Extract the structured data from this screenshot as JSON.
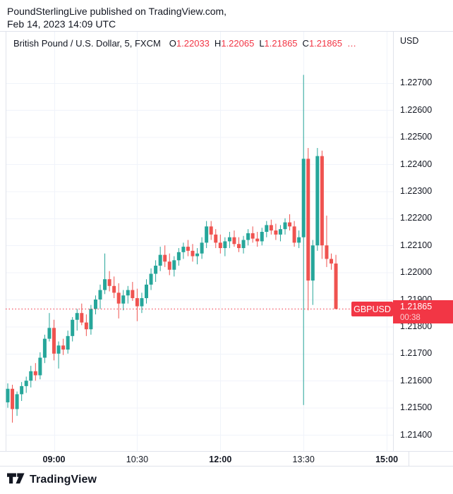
{
  "header": {
    "line1": "PoundSterlingLive published on TradingView.com,",
    "line2": "Feb 14, 2023 14:09 UTC"
  },
  "legend": {
    "title": "British Pound / U.S. Dollar, 5, FXCM",
    "ohlc": [
      {
        "label": "O",
        "value": "1.22033"
      },
      {
        "label": "H",
        "value": "1.22065"
      },
      {
        "label": "L",
        "value": "1.21865"
      },
      {
        "label": "C",
        "value": "1.21865"
      }
    ],
    "more_indicator": "…"
  },
  "price_axis": {
    "currency": "USD",
    "ticks": [
      "1.22700",
      "1.22600",
      "1.22500",
      "1.22400",
      "1.22300",
      "1.22200",
      "1.22100",
      "1.22000",
      "1.21900",
      "1.21800",
      "1.21700",
      "1.21600",
      "1.21500",
      "1.21400"
    ]
  },
  "last_price": {
    "value": "1.21865",
    "countdown": "00:38"
  },
  "price_line_label": "GBPUSD",
  "time_axis": {
    "labels": [
      {
        "text": "09:00",
        "emphasis": true
      },
      {
        "text": "10:30",
        "emphasis": false
      },
      {
        "text": "12:00",
        "emphasis": true
      },
      {
        "text": "13:30",
        "emphasis": false
      },
      {
        "text": "15:00",
        "emphasis": true
      }
    ]
  },
  "footer": {
    "brand": "TradingView"
  },
  "colors": {
    "up": "#26a69a",
    "down": "#ef5350",
    "accent_red": "#f23645",
    "grid": "#f0f3fa",
    "border": "#e0e3eb",
    "text": "#131722",
    "badge_text": "#ffffff"
  },
  "chart_data": {
    "type": "candlestick",
    "symbol": "GBPUSD",
    "description": "British Pound / U.S. Dollar",
    "interval_minutes": 5,
    "exchange": "FXCM",
    "quote_currency": "USD",
    "price_line": 1.21865,
    "y_ticks": [
      1.227,
      1.226,
      1.225,
      1.224,
      1.223,
      1.222,
      1.221,
      1.22,
      1.219,
      1.218,
      1.217,
      1.216,
      1.215,
      1.214
    ],
    "y_range_visible": [
      1.2133,
      1.2286
    ],
    "x_labels": [
      "09:00",
      "10:30",
      "12:00",
      "13:30",
      "15:00"
    ],
    "grid": true,
    "legend_position": "top-left",
    "candles": [
      {
        "t": "08:10",
        "o": 1.2152,
        "h": 1.2159,
        "l": 1.215,
        "c": 1.2157
      },
      {
        "t": "08:15",
        "o": 1.2157,
        "h": 1.21585,
        "l": 1.21445,
        "c": 1.21495
      },
      {
        "t": "08:20",
        "o": 1.21495,
        "h": 1.2156,
        "l": 1.2147,
        "c": 1.2155
      },
      {
        "t": "08:25",
        "o": 1.2155,
        "h": 1.21595,
        "l": 1.21525,
        "c": 1.2158
      },
      {
        "t": "08:30",
        "o": 1.2158,
        "h": 1.21615,
        "l": 1.21555,
        "c": 1.216
      },
      {
        "t": "08:35",
        "o": 1.216,
        "h": 1.21655,
        "l": 1.21575,
        "c": 1.21635
      },
      {
        "t": "08:40",
        "o": 1.21635,
        "h": 1.21665,
        "l": 1.216,
        "c": 1.2162
      },
      {
        "t": "08:45",
        "o": 1.2162,
        "h": 1.21705,
        "l": 1.21605,
        "c": 1.21685
      },
      {
        "t": "08:50",
        "o": 1.21685,
        "h": 1.2177,
        "l": 1.21665,
        "c": 1.21755
      },
      {
        "t": "08:55",
        "o": 1.21755,
        "h": 1.2185,
        "l": 1.21745,
        "c": 1.21795
      },
      {
        "t": "09:00",
        "o": 1.21795,
        "h": 1.21825,
        "l": 1.21675,
        "c": 1.217
      },
      {
        "t": "09:05",
        "o": 1.217,
        "h": 1.21745,
        "l": 1.21645,
        "c": 1.2173
      },
      {
        "t": "09:10",
        "o": 1.2173,
        "h": 1.21755,
        "l": 1.21695,
        "c": 1.21715
      },
      {
        "t": "09:15",
        "o": 1.21715,
        "h": 1.21785,
        "l": 1.217,
        "c": 1.21765
      },
      {
        "t": "09:20",
        "o": 1.21765,
        "h": 1.21835,
        "l": 1.21745,
        "c": 1.21825
      },
      {
        "t": "09:25",
        "o": 1.21825,
        "h": 1.21865,
        "l": 1.21785,
        "c": 1.2185
      },
      {
        "t": "09:30",
        "o": 1.2185,
        "h": 1.21885,
        "l": 1.21805,
        "c": 1.21815
      },
      {
        "t": "09:35",
        "o": 1.21815,
        "h": 1.21845,
        "l": 1.21765,
        "c": 1.2179
      },
      {
        "t": "09:40",
        "o": 1.2179,
        "h": 1.2188,
        "l": 1.2177,
        "c": 1.21865
      },
      {
        "t": "09:45",
        "o": 1.21865,
        "h": 1.21915,
        "l": 1.21845,
        "c": 1.219
      },
      {
        "t": "09:50",
        "o": 1.219,
        "h": 1.21955,
        "l": 1.21865,
        "c": 1.21935
      },
      {
        "t": "09:55",
        "o": 1.21935,
        "h": 1.2207,
        "l": 1.2192,
        "c": 1.21975
      },
      {
        "t": "10:00",
        "o": 1.21975,
        "h": 1.22005,
        "l": 1.2193,
        "c": 1.2195
      },
      {
        "t": "10:05",
        "o": 1.2195,
        "h": 1.21985,
        "l": 1.21905,
        "c": 1.21925
      },
      {
        "t": "10:10",
        "o": 1.21925,
        "h": 1.2196,
        "l": 1.2183,
        "c": 1.21885
      },
      {
        "t": "10:15",
        "o": 1.21885,
        "h": 1.21935,
        "l": 1.2186,
        "c": 1.21915
      },
      {
        "t": "10:20",
        "o": 1.21915,
        "h": 1.2195,
        "l": 1.21885,
        "c": 1.21935
      },
      {
        "t": "10:25",
        "o": 1.21935,
        "h": 1.21965,
        "l": 1.21895,
        "c": 1.21905
      },
      {
        "t": "10:30",
        "o": 1.21905,
        "h": 1.2194,
        "l": 1.2182,
        "c": 1.21875
      },
      {
        "t": "10:35",
        "o": 1.21875,
        "h": 1.21925,
        "l": 1.2185,
        "c": 1.21905
      },
      {
        "t": "10:40",
        "o": 1.21905,
        "h": 1.21975,
        "l": 1.21885,
        "c": 1.21955
      },
      {
        "t": "10:45",
        "o": 1.21955,
        "h": 1.22015,
        "l": 1.21935,
        "c": 1.21995
      },
      {
        "t": "10:50",
        "o": 1.21995,
        "h": 1.22045,
        "l": 1.21965,
        "c": 1.22025
      },
      {
        "t": "10:55",
        "o": 1.22025,
        "h": 1.22095,
        "l": 1.22005,
        "c": 1.22065
      },
      {
        "t": "11:00",
        "o": 1.22065,
        "h": 1.221,
        "l": 1.2202,
        "c": 1.2204
      },
      {
        "t": "11:05",
        "o": 1.2204,
        "h": 1.2207,
        "l": 1.2199,
        "c": 1.2201
      },
      {
        "t": "11:10",
        "o": 1.2201,
        "h": 1.2206,
        "l": 1.21985,
        "c": 1.22045
      },
      {
        "t": "11:15",
        "o": 1.22045,
        "h": 1.2209,
        "l": 1.22025,
        "c": 1.22075
      },
      {
        "t": "11:20",
        "o": 1.22075,
        "h": 1.2211,
        "l": 1.2205,
        "c": 1.22095
      },
      {
        "t": "11:25",
        "o": 1.22095,
        "h": 1.2212,
        "l": 1.2206,
        "c": 1.2208
      },
      {
        "t": "11:30",
        "o": 1.2208,
        "h": 1.22105,
        "l": 1.2204,
        "c": 1.2206
      },
      {
        "t": "11:35",
        "o": 1.2206,
        "h": 1.2209,
        "l": 1.2203,
        "c": 1.2207
      },
      {
        "t": "11:40",
        "o": 1.2207,
        "h": 1.2213,
        "l": 1.2205,
        "c": 1.2211
      },
      {
        "t": "11:45",
        "o": 1.2211,
        "h": 1.2219,
        "l": 1.2209,
        "c": 1.2217
      },
      {
        "t": "11:50",
        "o": 1.2217,
        "h": 1.2219,
        "l": 1.2212,
        "c": 1.2214
      },
      {
        "t": "11:55",
        "o": 1.2214,
        "h": 1.2216,
        "l": 1.2209,
        "c": 1.2211
      },
      {
        "t": "12:00",
        "o": 1.2211,
        "h": 1.2214,
        "l": 1.2207,
        "c": 1.2209
      },
      {
        "t": "12:05",
        "o": 1.2209,
        "h": 1.2213,
        "l": 1.2206,
        "c": 1.22115
      },
      {
        "t": "12:10",
        "o": 1.22115,
        "h": 1.2215,
        "l": 1.2209,
        "c": 1.2213
      },
      {
        "t": "12:15",
        "o": 1.2213,
        "h": 1.22155,
        "l": 1.22095,
        "c": 1.22105
      },
      {
        "t": "12:20",
        "o": 1.22105,
        "h": 1.2213,
        "l": 1.22075,
        "c": 1.2209
      },
      {
        "t": "12:25",
        "o": 1.2209,
        "h": 1.22135,
        "l": 1.2207,
        "c": 1.2212
      },
      {
        "t": "12:30",
        "o": 1.2212,
        "h": 1.2216,
        "l": 1.221,
        "c": 1.22145
      },
      {
        "t": "12:35",
        "o": 1.22145,
        "h": 1.2217,
        "l": 1.2211,
        "c": 1.22125
      },
      {
        "t": "12:40",
        "o": 1.22125,
        "h": 1.2215,
        "l": 1.22095,
        "c": 1.22115
      },
      {
        "t": "12:45",
        "o": 1.22115,
        "h": 1.22165,
        "l": 1.221,
        "c": 1.2215
      },
      {
        "t": "12:50",
        "o": 1.2215,
        "h": 1.2219,
        "l": 1.2213,
        "c": 1.22175
      },
      {
        "t": "12:55",
        "o": 1.22175,
        "h": 1.22195,
        "l": 1.2214,
        "c": 1.22155
      },
      {
        "t": "13:00",
        "o": 1.22155,
        "h": 1.2218,
        "l": 1.2212,
        "c": 1.2214
      },
      {
        "t": "13:05",
        "o": 1.2214,
        "h": 1.22175,
        "l": 1.22115,
        "c": 1.2216
      },
      {
        "t": "13:10",
        "o": 1.2216,
        "h": 1.222,
        "l": 1.2214,
        "c": 1.22185
      },
      {
        "t": "13:15",
        "o": 1.22185,
        "h": 1.22215,
        "l": 1.22155,
        "c": 1.2217
      },
      {
        "t": "13:20",
        "o": 1.2217,
        "h": 1.2219,
        "l": 1.22095,
        "c": 1.2211
      },
      {
        "t": "13:25",
        "o": 1.2211,
        "h": 1.22155,
        "l": 1.2209,
        "c": 1.2213
      },
      {
        "t": "13:30",
        "o": 1.2213,
        "h": 1.2273,
        "l": 1.2151,
        "c": 1.2242
      },
      {
        "t": "13:35",
        "o": 1.2242,
        "h": 1.2246,
        "l": 1.2186,
        "c": 1.2197
      },
      {
        "t": "13:40",
        "o": 1.2197,
        "h": 1.2212,
        "l": 1.2188,
        "c": 1.221
      },
      {
        "t": "13:45",
        "o": 1.221,
        "h": 1.2246,
        "l": 1.2208,
        "c": 1.2243
      },
      {
        "t": "13:50",
        "o": 1.2243,
        "h": 1.2245,
        "l": 1.2205,
        "c": 1.221
      },
      {
        "t": "13:55",
        "o": 1.221,
        "h": 1.2221,
        "l": 1.2202,
        "c": 1.2205
      },
      {
        "t": "14:00",
        "o": 1.2205,
        "h": 1.2207,
        "l": 1.2201,
        "c": 1.22033
      },
      {
        "t": "14:05",
        "o": 1.22033,
        "h": 1.22065,
        "l": 1.21865,
        "c": 1.21865
      }
    ]
  }
}
